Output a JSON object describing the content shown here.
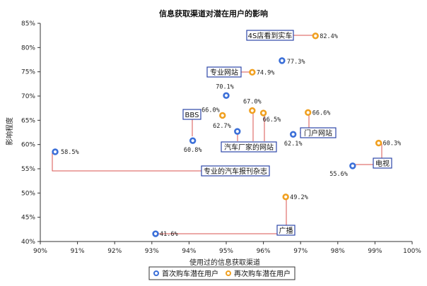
{
  "chart_data": {
    "type": "scatter",
    "title": "信息获取渠道对潜在用户的影响",
    "xlabel": "使用过的信息获取渠道",
    "ylabel": "影响程度",
    "xlim": [
      0.9,
      1.0
    ],
    "ylim": [
      0.4,
      0.85
    ],
    "x_ticks": [
      "90%",
      "91%",
      "92%",
      "93%",
      "94%",
      "95%",
      "96%",
      "97%",
      "98%",
      "99%",
      "100%"
    ],
    "y_ticks": [
      "40%",
      "45%",
      "50%",
      "55%",
      "60%",
      "65%",
      "70%",
      "75%",
      "80%",
      "85%"
    ],
    "grid": false,
    "legend_position": "bottom",
    "colors": {
      "first": "#3b6fd8",
      "repeat": "#f0a020",
      "leader": "#d9534f",
      "callout_border": "#2d46a8"
    },
    "series": [
      {
        "name": "首次购车潜在用户",
        "color": "#3b6fd8",
        "points": [
          {
            "x": 0.904,
            "y": 0.585,
            "label": "58.5%"
          },
          {
            "x": 0.931,
            "y": 0.416,
            "label": "41.6%"
          },
          {
            "x": 0.941,
            "y": 0.608,
            "label": "60.8%"
          },
          {
            "x": 0.95,
            "y": 0.701,
            "label": "70.1%"
          },
          {
            "x": 0.953,
            "y": 0.627,
            "label": "62.7%"
          },
          {
            "x": 0.965,
            "y": 0.773,
            "label": "77.3%"
          },
          {
            "x": 0.968,
            "y": 0.621,
            "label": "62.1%"
          },
          {
            "x": 0.984,
            "y": 0.556,
            "label": "55.6%"
          }
        ]
      },
      {
        "name": "再次购车潜在用户",
        "color": "#f0a020",
        "points": [
          {
            "x": 0.949,
            "y": 0.66,
            "label": "66.0%"
          },
          {
            "x": 0.957,
            "y": 0.749,
            "label": "74.9%"
          },
          {
            "x": 0.957,
            "y": 0.67,
            "label": "67.0%"
          },
          {
            "x": 0.96,
            "y": 0.665,
            "label": "66.5%"
          },
          {
            "x": 0.966,
            "y": 0.492,
            "label": "49.2%"
          },
          {
            "x": 0.972,
            "y": 0.666,
            "label": "66.6%"
          },
          {
            "x": 0.974,
            "y": 0.824,
            "label": "82.4%"
          },
          {
            "x": 0.991,
            "y": 0.603,
            "label": "60.3%"
          }
        ]
      }
    ],
    "annotations": [
      {
        "text": "4S店看到实车"
      },
      {
        "text": "专业网站"
      },
      {
        "text": "BBS"
      },
      {
        "text": "门户网站"
      },
      {
        "text": "汽车厂家的网站"
      },
      {
        "text": "专业的汽车报刊杂志"
      },
      {
        "text": "电视"
      },
      {
        "text": "广播"
      }
    ]
  }
}
